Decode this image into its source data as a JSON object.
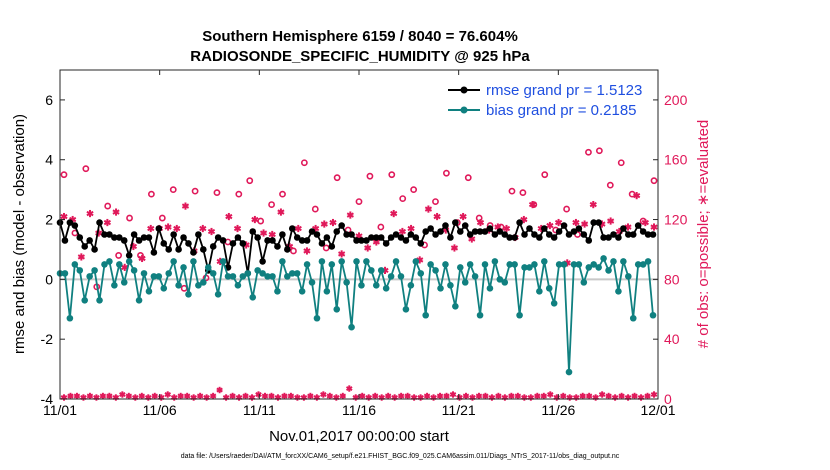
{
  "chart_data": {
    "type": "line",
    "title": "Southern Hemisphere 6159 / 8040 = 76.604%",
    "subtitle": "RADIOSONDE_SPECIFIC_HUMIDITY @ 925 hPa",
    "xlabel": "Nov.01,2017 00:00:00 start",
    "ylabel": "rmse and bias (model - observation)",
    "ylabel_right": "# of obs: o=possible; ∗=evaluated",
    "footnote": "data file: /Users/raeder/DAI/ATM_forcXX/CAM6_setup/f.e21.FHIST_BGC.f09_025.CAM6assim.011/Diags_NTrS_2017-11/obs_diag_output.nc",
    "x_ticks": [
      {
        "day": 0,
        "label": "11/01"
      },
      {
        "day": 5,
        "label": "11/06"
      },
      {
        "day": 10,
        "label": "11/11"
      },
      {
        "day": 15,
        "label": "11/16"
      },
      {
        "day": 20,
        "label": "11/21"
      },
      {
        "day": 25,
        "label": "11/26"
      },
      {
        "day": 30,
        "label": "12/01"
      }
    ],
    "xlim": [
      0,
      30
    ],
    "ylim": [
      -4,
      7
    ],
    "y_ticks": [
      -4,
      -2,
      0,
      2,
      4,
      6
    ],
    "ylim_right": [
      0,
      220
    ],
    "y_ticks_right": [
      0,
      40,
      80,
      120,
      160,
      200
    ],
    "colors": {
      "rmse": "#000000",
      "bias": "#108080",
      "obs": "#e0195a",
      "zero": "#c8c8c8",
      "legend_text": "#1f4fe0"
    },
    "series": [
      {
        "name": "rmse grand pr = 1.5123",
        "key": "rmse",
        "values": [
          1.9,
          1.3,
          1.9,
          1.8,
          1.4,
          1.1,
          1.3,
          1.0,
          1.9,
          1.5,
          1.5,
          1.4,
          1.4,
          1.3,
          0.8,
          1.5,
          1.3,
          1.4,
          1.4,
          0.9,
          1.7,
          1.2,
          1.0,
          1.5,
          1.0,
          1.4,
          1.2,
          0.9,
          1.5,
          1.0,
          0.3,
          1.1,
          1.4,
          1.3,
          0.4,
          1.2,
          1.4,
          1.2,
          0.2,
          1.6,
          1.4,
          0.6,
          1.3,
          1.3,
          1.1,
          1.5,
          1.0,
          1.7,
          1.4,
          1.3,
          1.3,
          1.6,
          1.5,
          1.2,
          1.4,
          1.1,
          1.6,
          1.8,
          1.5,
          1.5,
          1.3,
          1.3,
          1.3,
          1.4,
          1.4,
          1.4,
          1.2,
          1.4,
          1.5,
          1.4,
          1.3,
          1.5,
          1.4,
          1.2,
          1.6,
          1.7,
          1.5,
          1.6,
          1.8,
          1.4,
          1.9,
          1.6,
          1.8,
          1.5,
          1.6,
          1.6,
          1.6,
          1.7,
          1.5,
          1.6,
          1.5,
          1.4,
          1.4,
          1.9,
          1.5,
          1.7,
          1.5,
          1.4,
          1.7,
          1.5,
          1.4,
          1.6,
          1.8,
          1.5,
          1.6,
          1.7,
          1.5,
          1.3,
          1.9,
          1.9,
          1.4,
          1.4,
          1.5,
          1.4,
          1.7,
          1.5,
          1.5,
          1.8,
          1.6,
          1.5,
          1.5
        ]
      },
      {
        "name": "bias grand pr = 0.2185",
        "key": "bias",
        "values": [
          0.2,
          0.2,
          -1.3,
          0.5,
          0.3,
          -0.7,
          0.1,
          0.3,
          -0.7,
          0.5,
          0.6,
          -0.2,
          0.5,
          -0.1,
          0.6,
          0.3,
          -0.7,
          0.2,
          -0.4,
          0.1,
          0.1,
          -0.3,
          0.2,
          0.6,
          -0.2,
          0.4,
          -0.5,
          0.6,
          -0.2,
          -0.1,
          0.4,
          0.2,
          -0.5,
          0.6,
          0.1,
          0.1,
          -0.2,
          0.1,
          0.2,
          -0.6,
          0.3,
          0.2,
          0.1,
          0.1,
          -0.4,
          0.6,
          0.1,
          0.2,
          0.2,
          -0.4,
          0.5,
          -0.1,
          -1.3,
          0.6,
          -0.4,
          0.5,
          -1.0,
          0.6,
          -0.1,
          -1.6,
          0.6,
          -0.2,
          0.6,
          0.3,
          -0.2,
          0.3,
          -0.3,
          0.1,
          0.6,
          0.1,
          -1.0,
          -0.2,
          0.6,
          0.2,
          -1.2,
          0.5,
          0.3,
          -0.3,
          0.5,
          -0.2,
          -0.9,
          0.4,
          -0.1,
          0.5,
          0.1,
          -1.2,
          0.5,
          -0.3,
          0.6,
          0.0,
          -0.1,
          0.5,
          0.5,
          -1.2,
          0.4,
          0.4,
          0.5,
          -0.4,
          0.6,
          -0.3,
          -0.8,
          0.5,
          0.5,
          -3.1,
          0.5,
          0.5,
          -0.1,
          0.4,
          0.5,
          0.4,
          0.7,
          0.3,
          0.6,
          -0.4,
          0.6,
          0.1,
          -1.3,
          0.5,
          0.5,
          0.6,
          -1.2
        ]
      }
    ],
    "obs_possible": [
      150,
      111,
      154,
      75,
      129,
      96,
      121,
      96,
      137,
      121,
      140,
      74,
      139,
      81,
      138,
      105,
      137,
      146,
      119,
      130,
      137,
      99,
      158,
      127,
      101,
      148,
      113,
      132,
      149,
      115,
      150,
      134,
      140,
      103,
      132,
      151,
      118,
      148,
      121,
      116,
      115,
      139,
      138,
      130,
      150,
      113,
      127,
      110,
      165,
      166,
      143,
      158,
      137,
      119,
      146
    ],
    "obs_evaluated": [
      122,
      120,
      95,
      124,
      111,
      118,
      125,
      88,
      102,
      94,
      114,
      114,
      115,
      114,
      129,
      99,
      114,
      112,
      92,
      122,
      114,
      103,
      120,
      111,
      110,
      125,
      102,
      114,
      99,
      114,
      117,
      118,
      97,
      123,
      109,
      101,
      105,
      86,
      124,
      112,
      114,
      93,
      127,
      122,
      113,
      101,
      122,
      107,
      118,
      113,
      115,
      114,
      108,
      120,
      130,
      114,
      116,
      118,
      91,
      118,
      117,
      130,
      117,
      119,
      112,
      115,
      136,
      118,
      115
    ],
    "obs_floor": [
      1,
      2,
      2,
      1,
      2,
      1,
      2,
      2,
      1,
      3,
      2,
      1,
      2,
      1,
      2,
      1,
      3,
      1,
      2,
      2,
      1,
      2,
      1,
      2,
      6,
      1,
      2,
      1,
      2,
      1,
      3,
      2,
      2,
      1,
      2,
      2,
      1,
      1,
      2,
      1,
      3,
      2,
      1,
      2,
      7,
      1,
      2,
      1,
      2,
      1,
      2,
      1,
      2,
      2,
      1,
      1,
      2,
      1,
      2,
      2,
      3,
      1,
      2,
      1,
      2,
      2,
      1,
      2,
      1,
      2,
      2,
      1,
      1,
      2,
      2,
      3,
      1,
      2,
      1,
      1,
      2,
      2,
      1,
      3,
      2,
      1,
      2,
      1,
      2,
      1,
      2,
      3
    ]
  }
}
